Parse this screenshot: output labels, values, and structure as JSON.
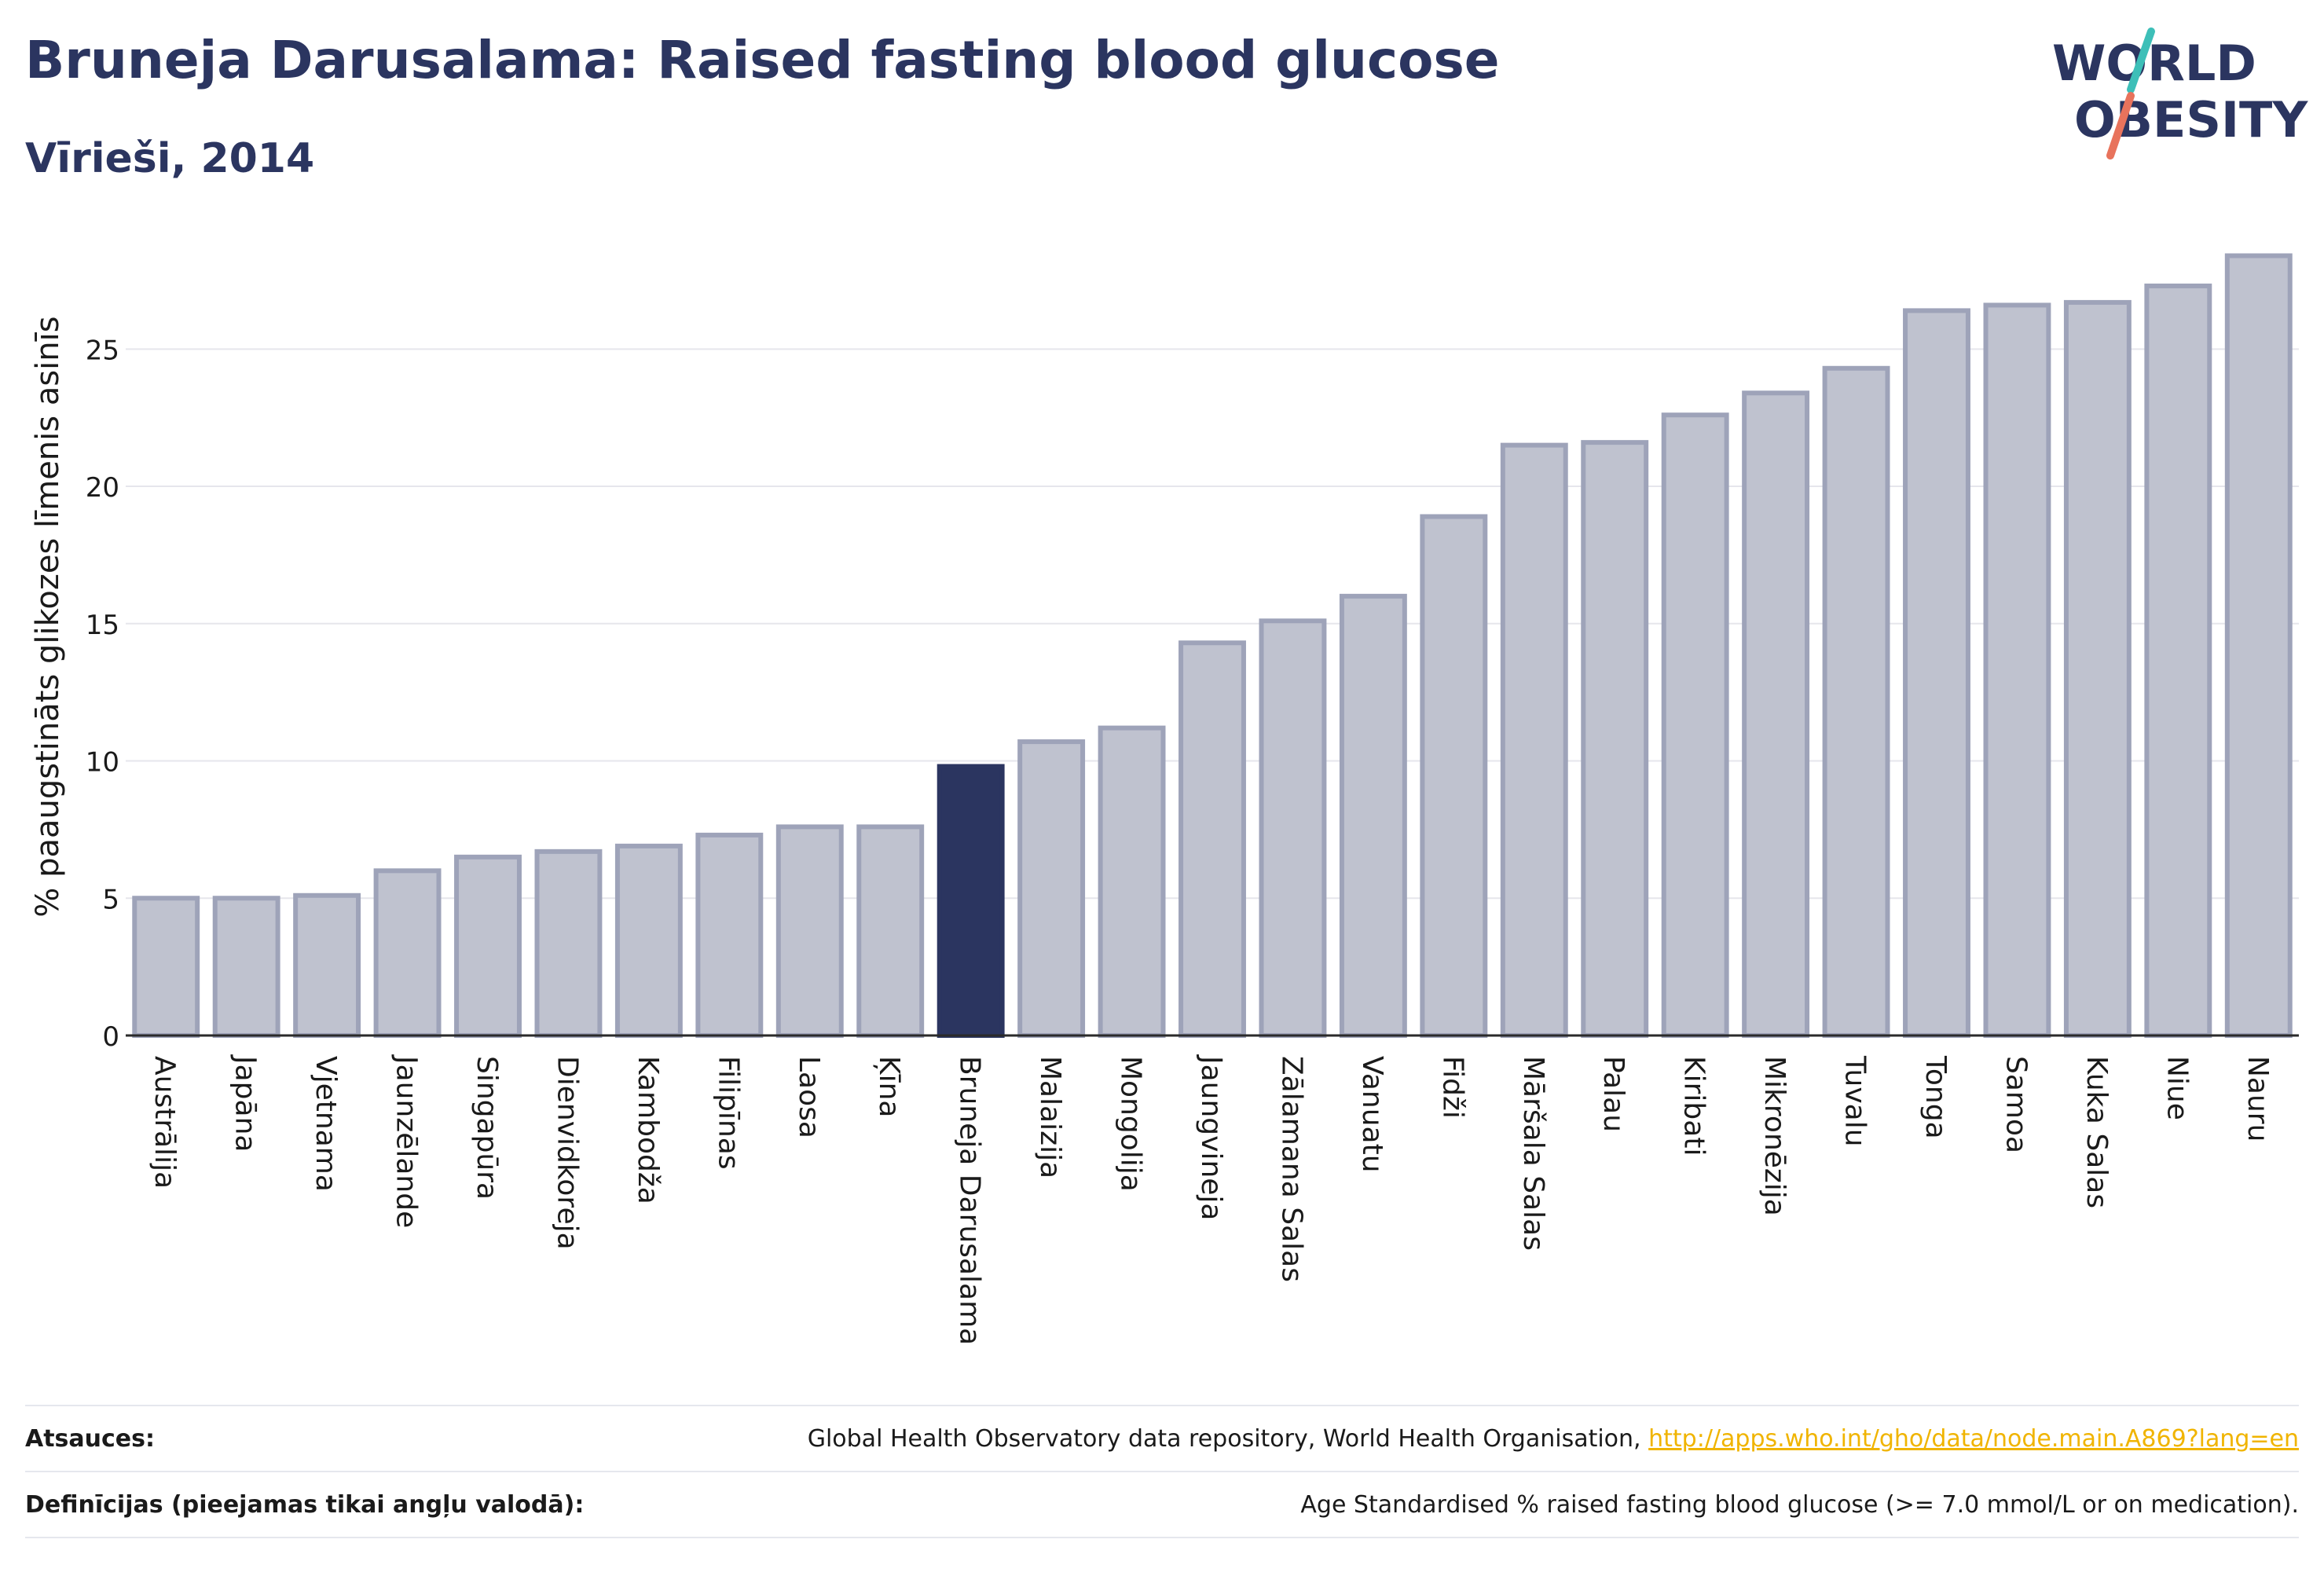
{
  "header": {
    "title": "Bruneja Darusalama: Raised fasting blood glucose",
    "subtitle": "Vīrieši, 2014"
  },
  "logo": {
    "line1": "WORLD",
    "line2": "OBESITY"
  },
  "colors": {
    "title": "#2b3560",
    "bar_fill": "#bfc2cf",
    "bar_stroke": "#9ea3b9",
    "highlight": "#2b3560",
    "gridline": "#e6e6ec",
    "link": "#f0b400",
    "logo_teal": "#3dbfb8",
    "logo_coral": "#e8735c"
  },
  "chart_data": {
    "type": "bar",
    "ylabel": "% paaugstināts glikozes līmenis asinīs",
    "ylim": [
      0,
      28.5
    ],
    "yticks": [
      0,
      5,
      10,
      15,
      20,
      25
    ],
    "grid": true,
    "highlight": "Bruneja Darusalama",
    "categories": [
      "Austrālija",
      "Japāna",
      "Vjetnama",
      "Jaunzēlande",
      "Singapūra",
      "Dienvidkoreja",
      "Kambodža",
      "Filipīnas",
      "Laosa",
      "Ķīna",
      "Bruneja Darusalama",
      "Malaizija",
      "Mongolija",
      "Jaungvineja",
      "Zālamana Salas",
      "Vanuatu",
      "Fidži",
      "Māršala Salas",
      "Palau",
      "Kiribati",
      "Mikronēzija",
      "Tuvalu",
      "Tonga",
      "Samoa",
      "Kuka Salas",
      "Niue",
      "Nauru"
    ],
    "values": [
      5.0,
      5.0,
      5.1,
      6.0,
      6.5,
      6.7,
      6.9,
      7.3,
      7.6,
      7.6,
      9.8,
      10.7,
      11.2,
      14.3,
      15.1,
      16.0,
      18.9,
      21.5,
      21.6,
      22.6,
      23.4,
      24.3,
      26.4,
      26.6,
      26.7,
      27.3,
      28.4
    ]
  },
  "footer": {
    "sources_label": "Atsauces:",
    "sources_text": "Global Health Observatory data repository, World Health Organisation,",
    "sources_link": "http://apps.who.int/gho/data/node.main.A869?lang=en",
    "definitions_label": "Definīcijas (pieejamas tikai angļu valodā):",
    "definitions_text": "Age Standardised % raised fasting blood glucose (>= 7.0 mmol/L or on medication)."
  }
}
